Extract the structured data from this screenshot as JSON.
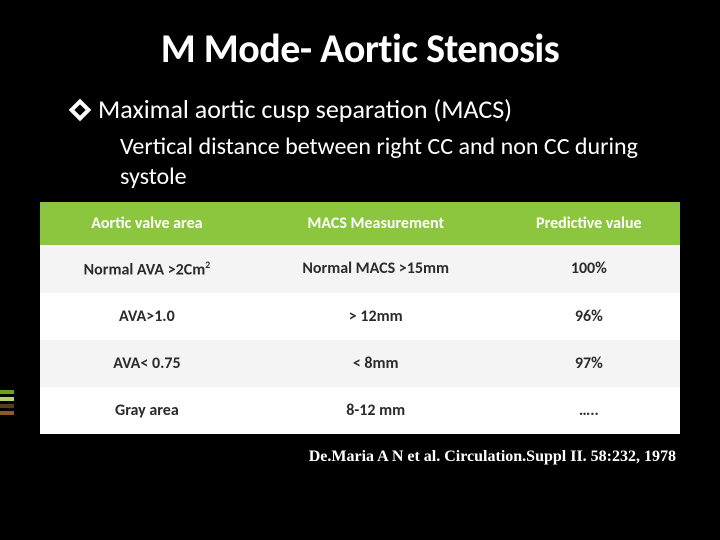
{
  "title": "M Mode- Aortic Stenosis",
  "bullet": {
    "heading": "Maximal aortic cusp separation (MACS)",
    "sub": "Vertical distance between right CC and non CC during systole"
  },
  "table": {
    "headers": [
      "Aortic valve area",
      "MACS Measurement",
      "Predictive value"
    ],
    "rows": [
      [
        "Normal AVA  >2Cm",
        "Normal MACS >15mm",
        "100%"
      ],
      [
        "AVA>1.0",
        "> 12mm",
        "96%"
      ],
      [
        "AVA< 0.75",
        "< 8mm",
        "97%"
      ],
      [
        "Gray area",
        "8-12 mm",
        "….."
      ]
    ],
    "first_row_sup": "2",
    "header_bg": "#8cc63f",
    "header_fg": "#ffffff",
    "row_odd_bg": "#f4f4f4",
    "row_even_bg": "#ffffff",
    "cell_fg": "#2b2b2b"
  },
  "citation": "De.Maria A N et al. Circulation.Suppl II. 58:232, 1978",
  "left_mark_colors": [
    "#6aa121",
    "#b5d169",
    "#5c3a1a",
    "#8b5a2b"
  ]
}
